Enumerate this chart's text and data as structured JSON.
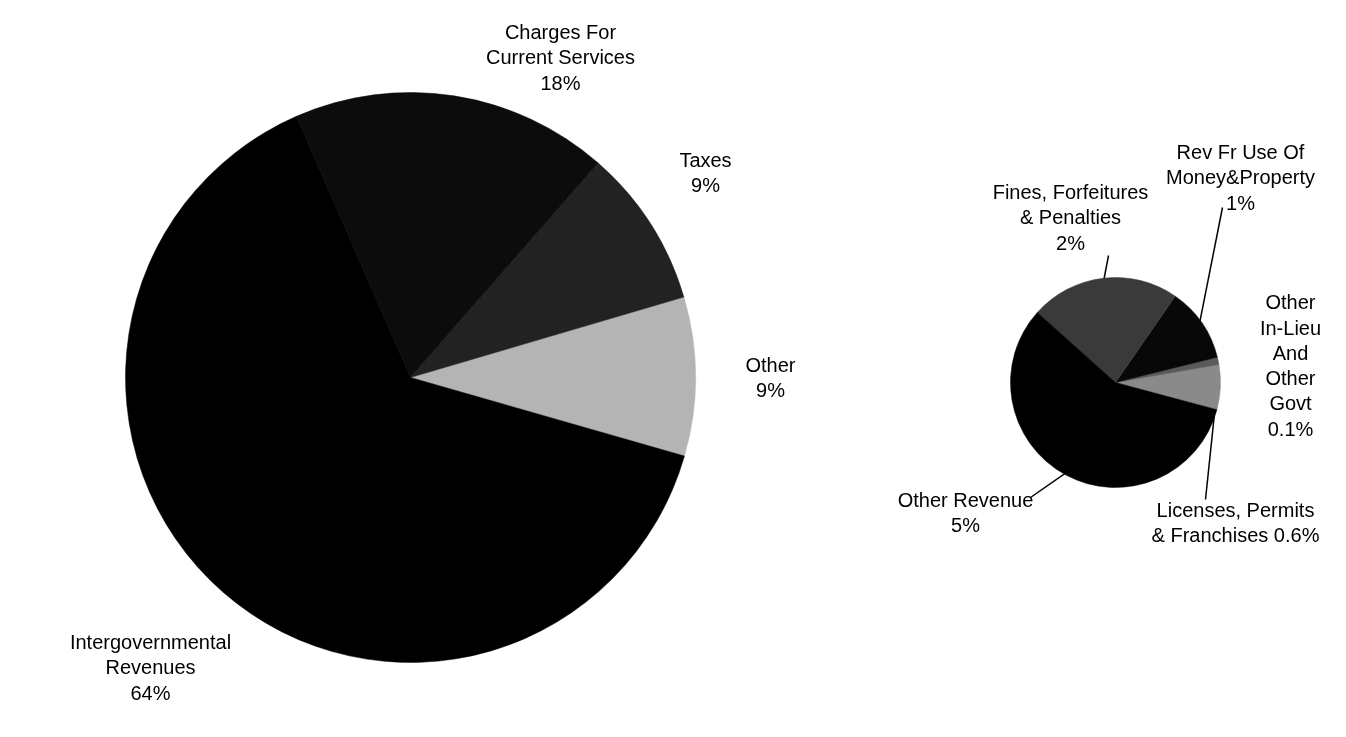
{
  "chart_data": [
    {
      "type": "pie",
      "categories": [
        "Other",
        "Taxes",
        "Charges For Current Services",
        "Intergovernmental Revenues"
      ],
      "values": [
        9,
        9,
        18,
        64
      ],
      "value_labels": [
        "9%",
        "9%",
        "18%",
        "64%"
      ],
      "colors": [
        "#b4b4b4",
        "#222222",
        "#0c0c0c",
        "#000000"
      ]
    },
    {
      "type": "pie",
      "categories": [
        "Licenses, Permits & Franchises",
        "Other In-Lieu And Other Govt",
        "Rev Fr Use Of Money&Property",
        "Fines, Forfeitures & Penalties",
        "Other Revenue"
      ],
      "values": [
        0.6,
        0.1,
        1,
        2,
        5
      ],
      "value_labels": [
        "0.6%",
        "0.1%",
        "1%",
        "2%",
        "5%"
      ],
      "colors": [
        "#8a8a8a",
        "#5a5a5a",
        "#080808",
        "#3a3a3a",
        "#000000"
      ]
    }
  ]
}
